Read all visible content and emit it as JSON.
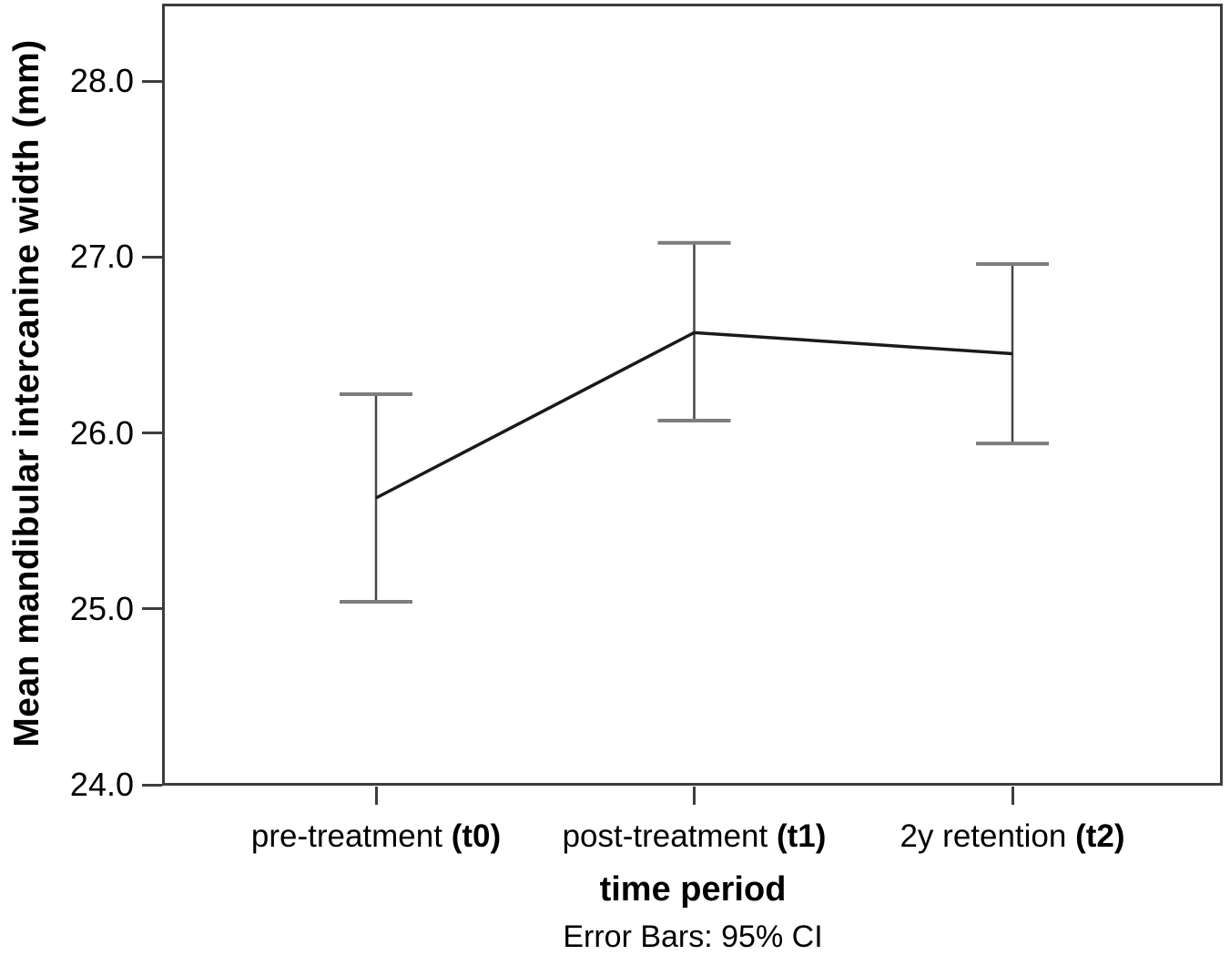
{
  "figure": {
    "background": "#ffffff",
    "border_color": "#3d3d3d",
    "series_line_color": "#1a1a1a",
    "errorbar_line_color": "#454545",
    "errorbar_cap_color": "#7d7d7d",
    "text_color": "#000000"
  },
  "chart_data": {
    "type": "line",
    "title": "",
    "xlabel": "time period",
    "ylabel": "Mean mandibular intercanine width (mm)",
    "caption": "Error Bars: 95% CI",
    "categories": [
      "pre-treatment (t0)",
      "post-treatment (t1)",
      "2y retention (t2)"
    ],
    "category_labels": [
      {
        "text": "pre-treatment",
        "bold_suffix": "(t0)"
      },
      {
        "text": "post-treatment",
        "bold_suffix": "(t1)"
      },
      {
        "text": "2y retention",
        "bold_suffix": "(t2)"
      }
    ],
    "series": [
      {
        "name": "Mean mandibular intercanine width (mm)",
        "values": [
          25.63,
          26.57,
          26.45
        ],
        "ci_low": [
          25.04,
          26.07,
          25.94
        ],
        "ci_high": [
          26.22,
          27.08,
          26.96
        ]
      }
    ],
    "error_bars": "95% CI",
    "yticks": [
      24.0,
      25.0,
      26.0,
      27.0,
      28.0
    ],
    "ytick_labels": [
      "24.0",
      "25.0",
      "26.0",
      "27.0",
      "28.0"
    ],
    "ylim": [
      24.0,
      28.44
    ],
    "grid": false,
    "legend": "none",
    "marker": "none"
  }
}
